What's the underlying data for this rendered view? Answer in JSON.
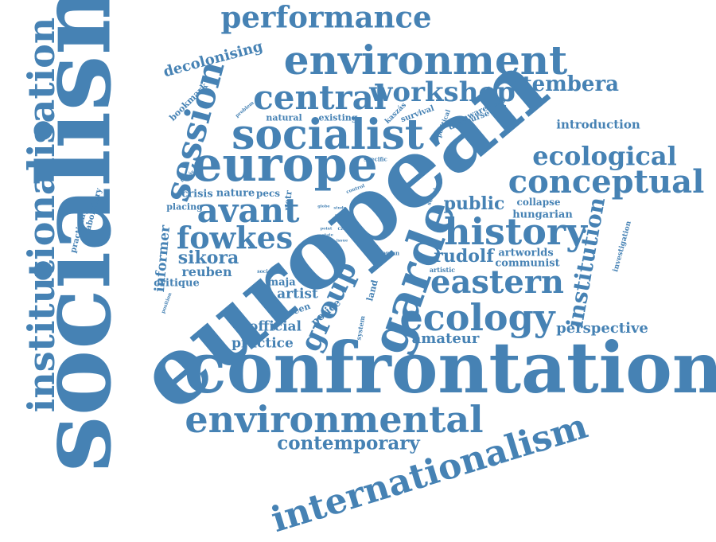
{
  "style": {
    "word_color": "#4682b4",
    "background": "#ffffff"
  },
  "words": [
    "socialism",
    "european",
    "confrontation",
    "institutionalisation",
    "internationalism",
    "environment",
    "environmental",
    "performance",
    "europe",
    "socialist",
    "session",
    "central",
    "workshop",
    "stembera",
    "garde",
    "history",
    "ecology",
    "eastern",
    "avant",
    "fowkes",
    "conceptual",
    "ecological",
    "group",
    "institution",
    "contemporary",
    "decolonising",
    "introduction",
    "perspective",
    "rudolf",
    "sikora",
    "reuben",
    "informer",
    "public",
    "amateur",
    "official",
    "practice",
    "artist",
    "maja",
    "critique",
    "nature",
    "crisis",
    "pecs",
    "petr",
    "hungarian",
    "collapse",
    "artworlds",
    "communist",
    "investigation",
    "bookmark",
    "natural",
    "existing",
    "political",
    "awareness",
    "discourse",
    "survival",
    "kaszás",
    "laboratory",
    "practicing",
    "placing",
    "police",
    "land",
    "green",
    "system",
    "specific",
    "control",
    "social",
    "utopian",
    "artistic",
    "problem",
    "tamás",
    "position",
    "society",
    "globe",
    "study",
    "article",
    "actual",
    "czech",
    "point",
    "state",
    "issue"
  ]
}
